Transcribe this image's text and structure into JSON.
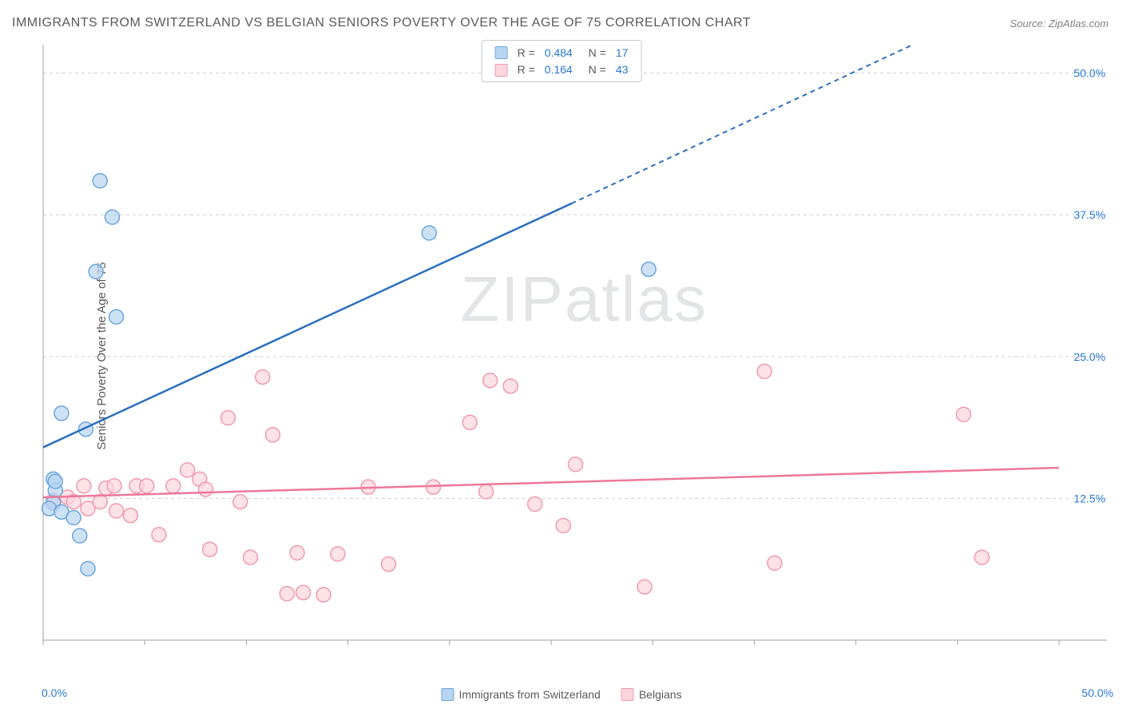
{
  "title": "IMMIGRANTS FROM SWITZERLAND VS BELGIAN SENIORS POVERTY OVER THE AGE OF 75 CORRELATION CHART",
  "source": "Source: ZipAtlas.com",
  "ylabel": "Seniors Poverty Over the Age of 75",
  "watermark_a": "ZIP",
  "watermark_b": "atlas",
  "chart": {
    "type": "scatter",
    "xlim": [
      0,
      50
    ],
    "ylim": [
      0,
      52.5
    ],
    "xtick_min_label": "0.0%",
    "xtick_max_label": "50.0%",
    "yticks": [
      12.5,
      25.0,
      37.5,
      50.0
    ],
    "ytick_labels": [
      "12.5%",
      "25.0%",
      "37.5%",
      "50.0%"
    ],
    "grid_color": "#d0d0d0",
    "background_color": "#ffffff",
    "marker_radius": 9,
    "series": [
      {
        "name": "Immigrants from Switzerland",
        "color_fill": "#b8d4f0",
        "color_stroke": "#6ba6e0",
        "trend_color": "#2c6fbf",
        "R": "0.484",
        "N": "17",
        "trend_start": [
          0,
          17
        ],
        "trend_end_solid": [
          26,
          38.5
        ],
        "trend_end_dash": [
          47,
          56
        ],
        "points": [
          [
            0.5,
            14.2
          ],
          [
            0.6,
            13.2
          ],
          [
            0.5,
            12.1
          ],
          [
            0.3,
            11.6
          ],
          [
            0.9,
            11.3
          ],
          [
            1.5,
            10.8
          ],
          [
            1.8,
            9.2
          ],
          [
            2.2,
            6.3
          ],
          [
            0.9,
            20.0
          ],
          [
            2.1,
            18.6
          ],
          [
            2.8,
            40.5
          ],
          [
            3.4,
            37.3
          ],
          [
            2.6,
            32.5
          ],
          [
            3.6,
            28.5
          ],
          [
            19.0,
            35.9
          ],
          [
            29.8,
            32.7
          ],
          [
            0.6,
            14.0
          ]
        ]
      },
      {
        "name": "Belgians",
        "color_fill": "#fcd5dd",
        "color_stroke": "#f09aac",
        "trend_color": "#ed7899",
        "R": "0.164",
        "N": "43",
        "trend_start": [
          0,
          12.6
        ],
        "trend_end": [
          50,
          15.2
        ],
        "points": [
          [
            0.5,
            12.3
          ],
          [
            1.2,
            12.6
          ],
          [
            1.5,
            12.2
          ],
          [
            2.0,
            13.6
          ],
          [
            2.2,
            11.6
          ],
          [
            2.8,
            12.2
          ],
          [
            3.1,
            13.4
          ],
          [
            3.5,
            13.6
          ],
          [
            3.6,
            11.4
          ],
          [
            4.3,
            11.0
          ],
          [
            4.6,
            13.6
          ],
          [
            5.1,
            13.6
          ],
          [
            5.7,
            9.3
          ],
          [
            6.4,
            13.6
          ],
          [
            7.1,
            15.0
          ],
          [
            7.7,
            14.2
          ],
          [
            8.0,
            13.3
          ],
          [
            8.2,
            8.0
          ],
          [
            9.1,
            19.6
          ],
          [
            9.7,
            12.2
          ],
          [
            10.2,
            7.3
          ],
          [
            10.8,
            23.2
          ],
          [
            11.3,
            18.1
          ],
          [
            12.0,
            4.1
          ],
          [
            12.5,
            7.7
          ],
          [
            12.8,
            4.2
          ],
          [
            13.8,
            4.0
          ],
          [
            14.5,
            7.6
          ],
          [
            16.0,
            13.5
          ],
          [
            17.0,
            6.7
          ],
          [
            19.2,
            13.5
          ],
          [
            21.0,
            19.2
          ],
          [
            21.8,
            13.1
          ],
          [
            22.0,
            22.9
          ],
          [
            23.0,
            22.4
          ],
          [
            24.2,
            12.0
          ],
          [
            25.6,
            10.1
          ],
          [
            26.2,
            15.5
          ],
          [
            29.6,
            4.7
          ],
          [
            35.5,
            23.7
          ],
          [
            36.0,
            6.8
          ],
          [
            45.3,
            19.9
          ],
          [
            46.2,
            7.3
          ]
        ]
      }
    ]
  },
  "legend_bottom": {
    "series1": "Immigrants from Switzerland",
    "series2": "Belgians"
  }
}
